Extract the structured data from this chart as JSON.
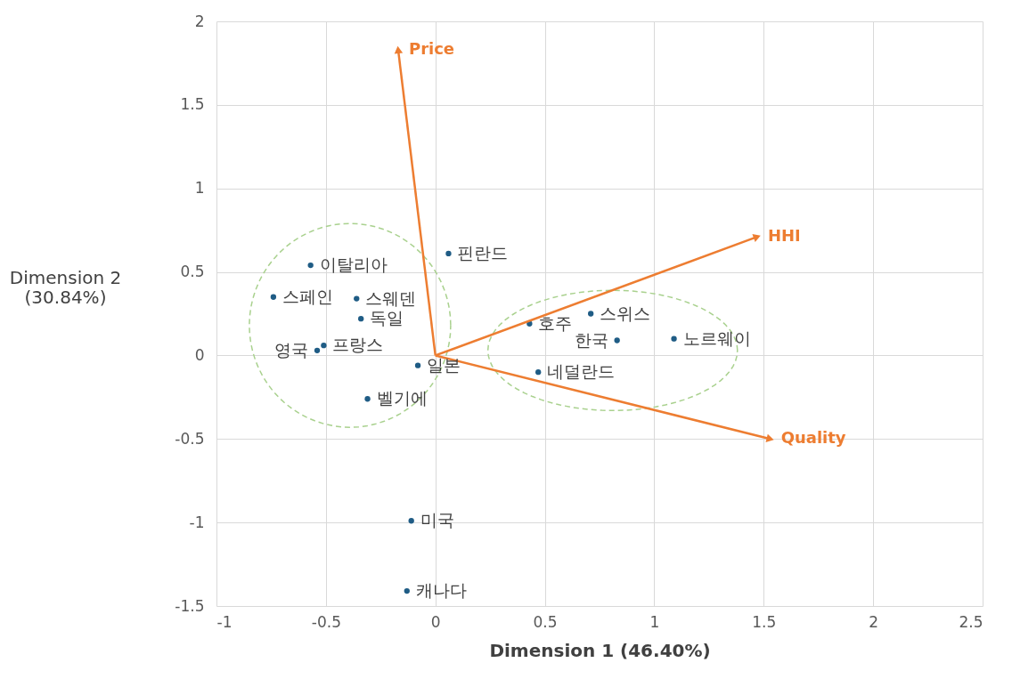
{
  "chart_data": {
    "type": "scatter",
    "xlabel": "Dimension 1 (46.40%)",
    "ylabel": "Dimension 2 (30.84%)",
    "xlim": [
      -1,
      2.5
    ],
    "ylim": [
      -1.5,
      2
    ],
    "xticks": [
      -1,
      -0.5,
      0,
      0.5,
      1,
      1.5,
      2,
      2.5
    ],
    "yticks": [
      -1.5,
      -1,
      -0.5,
      0,
      0.5,
      1,
      1.5,
      2
    ],
    "grid": true,
    "legend": false,
    "series": [
      {
        "type": "scatter",
        "color": "#1f5c85",
        "marker": "circle",
        "x": [
          -0.57,
          -0.74,
          -0.36,
          -0.34,
          -0.51,
          -0.54,
          -0.08,
          -0.31,
          0.06,
          0.43,
          0.71,
          0.83,
          1.09,
          0.47,
          -0.11,
          -0.13
        ],
        "values": [
          0.54,
          0.35,
          0.34,
          0.22,
          0.06,
          0.03,
          -0.06,
          -0.26,
          0.61,
          0.19,
          0.25,
          0.09,
          0.1,
          -0.1,
          -0.99,
          -1.41
        ]
      },
      {
        "type": "line",
        "name": "Price",
        "color": "#ed7d31",
        "x": [
          0,
          -0.17
        ],
        "values": [
          0,
          1.83
        ]
      },
      {
        "type": "line",
        "name": "HHI",
        "color": "#ed7d31",
        "x": [
          0,
          1.47
        ],
        "values": [
          0,
          0.71
        ]
      },
      {
        "type": "line",
        "name": "Quality",
        "color": "#ed7d31",
        "x": [
          0,
          1.53
        ],
        "values": [
          0,
          -0.5
        ]
      }
    ],
    "annotations": [
      {
        "text": "이탈리아",
        "x": -0.57,
        "y": 0.54
      },
      {
        "text": "스페인",
        "x": -0.74,
        "y": 0.35
      },
      {
        "text": "스웨덴",
        "x": -0.36,
        "y": 0.34
      },
      {
        "text": "독일",
        "x": -0.34,
        "y": 0.22
      },
      {
        "text": "프랑스",
        "x": -0.51,
        "y": 0.06
      },
      {
        "text": "영국",
        "x": -0.54,
        "y": 0.03
      },
      {
        "text": "일본",
        "x": -0.08,
        "y": -0.06
      },
      {
        "text": "벨기에",
        "x": -0.31,
        "y": -0.26
      },
      {
        "text": "핀란드",
        "x": 0.06,
        "y": 0.61
      },
      {
        "text": "호주",
        "x": 0.43,
        "y": 0.19
      },
      {
        "text": "스위스",
        "x": 0.71,
        "y": 0.25
      },
      {
        "text": "한국",
        "x": 0.83,
        "y": 0.09
      },
      {
        "text": "노르웨이",
        "x": 1.09,
        "y": 0.1
      },
      {
        "text": "네덜란드",
        "x": 0.47,
        "y": -0.1
      },
      {
        "text": "미국",
        "x": -0.11,
        "y": -0.99
      },
      {
        "text": "캐나다",
        "x": -0.13,
        "y": -1.41
      }
    ]
  }
}
